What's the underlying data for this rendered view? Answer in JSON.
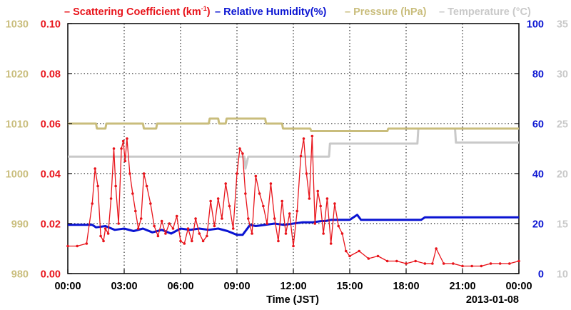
{
  "chart_data": {
    "type": "line",
    "date_label": "2013-01-08",
    "xlabel": "Time (JST)",
    "x_ticks": [
      "00:00",
      "03:00",
      "06:00",
      "09:00",
      "12:00",
      "15:00",
      "18:00",
      "21:00",
      "00:00"
    ],
    "x_range_hours": [
      0,
      24
    ],
    "grid": true,
    "legend_position": "top",
    "axes": {
      "scattering": {
        "range": [
          0.0,
          0.1
        ],
        "ticks": [
          "0.00",
          "0.02",
          "0.04",
          "0.06",
          "0.08",
          "0.10"
        ],
        "color": "#e8141b",
        "side": "left-inner"
      },
      "pressure": {
        "range": [
          980,
          1030
        ],
        "ticks": [
          "980",
          "990",
          "1000",
          "1010",
          "1020",
          "1030"
        ],
        "color": "#c9bd7c",
        "side": "left-outer"
      },
      "humidity": {
        "range": [
          0,
          100
        ],
        "ticks": [
          "0",
          "20",
          "40",
          "60",
          "80",
          "100"
        ],
        "color": "#0a14d2",
        "side": "right-inner"
      },
      "temperature": {
        "range": [
          10,
          35
        ],
        "ticks": [
          "10",
          "15",
          "20",
          "25",
          "30",
          "35"
        ],
        "color": "#c9c9c9",
        "side": "right-outer"
      }
    },
    "legend": [
      {
        "label_main": "Scattering Coefficient (km",
        "label_sup": "-1",
        "label_tail": ")",
        "color": "#e8141b"
      },
      {
        "label_main": "Relative Humidity(%)",
        "color": "#0a14d2"
      },
      {
        "label_main": "Pressure (hPa)",
        "color": "#c9bd7c"
      },
      {
        "label_main": "Temperature (°C)",
        "color": "#c9c9c9"
      }
    ],
    "series": [
      {
        "name": "Scattering Coefficient (km-1)",
        "axis": "scattering",
        "marker": "point",
        "x": [
          0,
          0.5,
          1.0,
          1.3,
          1.45,
          1.6,
          1.75,
          1.9,
          2.0,
          2.15,
          2.3,
          2.45,
          2.55,
          2.7,
          2.85,
          2.95,
          3.05,
          3.15,
          3.3,
          3.45,
          3.6,
          3.75,
          3.9,
          4.05,
          4.2,
          4.4,
          4.6,
          4.8,
          5.0,
          5.2,
          5.4,
          5.6,
          5.8,
          6.0,
          6.2,
          6.4,
          6.6,
          6.8,
          7.0,
          7.2,
          7.4,
          7.6,
          7.8,
          8.0,
          8.2,
          8.4,
          8.6,
          8.8,
          9.0,
          9.15,
          9.3,
          9.45,
          9.6,
          9.8,
          10.0,
          10.2,
          10.4,
          10.6,
          10.8,
          11.0,
          11.2,
          11.4,
          11.6,
          11.8,
          12.0,
          12.2,
          12.4,
          12.55,
          12.7,
          12.85,
          13.0,
          13.15,
          13.3,
          13.45,
          13.6,
          13.8,
          14.0,
          14.2,
          14.4,
          14.6,
          14.8,
          15.0,
          15.5,
          16.0,
          16.5,
          17.0,
          17.5,
          18.0,
          18.5,
          19.0,
          19.4,
          19.6,
          20.0,
          20.5,
          21.0,
          21.5,
          22.0,
          22.5,
          23.0,
          23.5,
          24.0
        ],
        "values": [
          0.011,
          0.011,
          0.012,
          0.028,
          0.042,
          0.035,
          0.015,
          0.013,
          0.018,
          0.016,
          0.03,
          0.05,
          0.035,
          0.02,
          0.05,
          0.053,
          0.045,
          0.054,
          0.04,
          0.032,
          0.025,
          0.018,
          0.022,
          0.04,
          0.035,
          0.028,
          0.019,
          0.015,
          0.021,
          0.016,
          0.02,
          0.018,
          0.023,
          0.013,
          0.012,
          0.018,
          0.013,
          0.022,
          0.016,
          0.013,
          0.015,
          0.029,
          0.019,
          0.03,
          0.022,
          0.036,
          0.027,
          0.018,
          0.04,
          0.05,
          0.048,
          0.032,
          0.022,
          0.016,
          0.039,
          0.032,
          0.027,
          0.02,
          0.036,
          0.022,
          0.013,
          0.029,
          0.016,
          0.024,
          0.011,
          0.025,
          0.047,
          0.054,
          0.04,
          0.03,
          0.055,
          0.02,
          0.033,
          0.027,
          0.016,
          0.03,
          0.012,
          0.028,
          0.019,
          0.016,
          0.009,
          0.007,
          0.009,
          0.006,
          0.007,
          0.005,
          0.005,
          0.004,
          0.005,
          0.004,
          0.004,
          0.01,
          0.004,
          0.004,
          0.003,
          0.003,
          0.003,
          0.004,
          0.004,
          0.004,
          0.005
        ]
      },
      {
        "name": "Relative Humidity(%)",
        "axis": "humidity",
        "marker": "none",
        "x": [
          0,
          1.3,
          1.5,
          2.0,
          2.5,
          3.0,
          3.5,
          4.0,
          4.5,
          5.0,
          5.5,
          6.0,
          6.5,
          7.0,
          7.5,
          8.0,
          8.5,
          9.0,
          9.3,
          9.7,
          10.0,
          10.5,
          11.0,
          11.5,
          12.0,
          12.5,
          13.0,
          13.5,
          13.7,
          14.0,
          15.0,
          15.4,
          15.6,
          15.8,
          16.0,
          17.0,
          18.0,
          18.8,
          19.0,
          20.0,
          21.0,
          22.0,
          23.0,
          24.0
        ],
        "values": [
          19.5,
          19.5,
          18.5,
          19.0,
          17.5,
          18.0,
          17.0,
          18.0,
          16.5,
          17.5,
          16.0,
          18.0,
          17.5,
          18.0,
          17.5,
          18.0,
          17.0,
          15.5,
          15.5,
          19.5,
          19.0,
          19.5,
          20.0,
          19.5,
          20.0,
          20.5,
          20.5,
          21.0,
          21.0,
          21.5,
          21.5,
          23.5,
          21.5,
          21.5,
          21.5,
          21.5,
          21.5,
          21.5,
          22.5,
          22.5,
          22.5,
          22.5,
          22.5,
          22.5
        ]
      },
      {
        "name": "Pressure (hPa)",
        "axis": "pressure",
        "marker": "none",
        "x": [
          0,
          1.5,
          1.55,
          2.0,
          2.05,
          4.0,
          4.05,
          4.7,
          4.75,
          7.5,
          7.55,
          8.0,
          8.05,
          8.4,
          8.45,
          10.5,
          10.55,
          11.4,
          11.45,
          12.9,
          12.95,
          17.0,
          17.05,
          24.0
        ],
        "values": [
          1010.0,
          1010.0,
          1009.0,
          1009.0,
          1010.0,
          1010.0,
          1009.0,
          1009.0,
          1010.0,
          1010.0,
          1011.0,
          1011.0,
          1010.0,
          1010.0,
          1011.0,
          1011.0,
          1010.0,
          1010.0,
          1009.0,
          1009.0,
          1008.5,
          1008.5,
          1009.0,
          1009.0
        ]
      },
      {
        "name": "Temperature (°C)",
        "axis": "temperature",
        "marker": "none",
        "x": [
          0,
          9.4,
          9.45,
          9.6,
          9.65,
          13.9,
          13.95,
          18.6,
          18.65,
          20.6,
          20.65,
          24.0
        ],
        "values": [
          21.7,
          21.7,
          20.5,
          21.7,
          21.7,
          21.7,
          23.0,
          23.0,
          24.5,
          24.5,
          23.1,
          23.1
        ]
      }
    ]
  }
}
